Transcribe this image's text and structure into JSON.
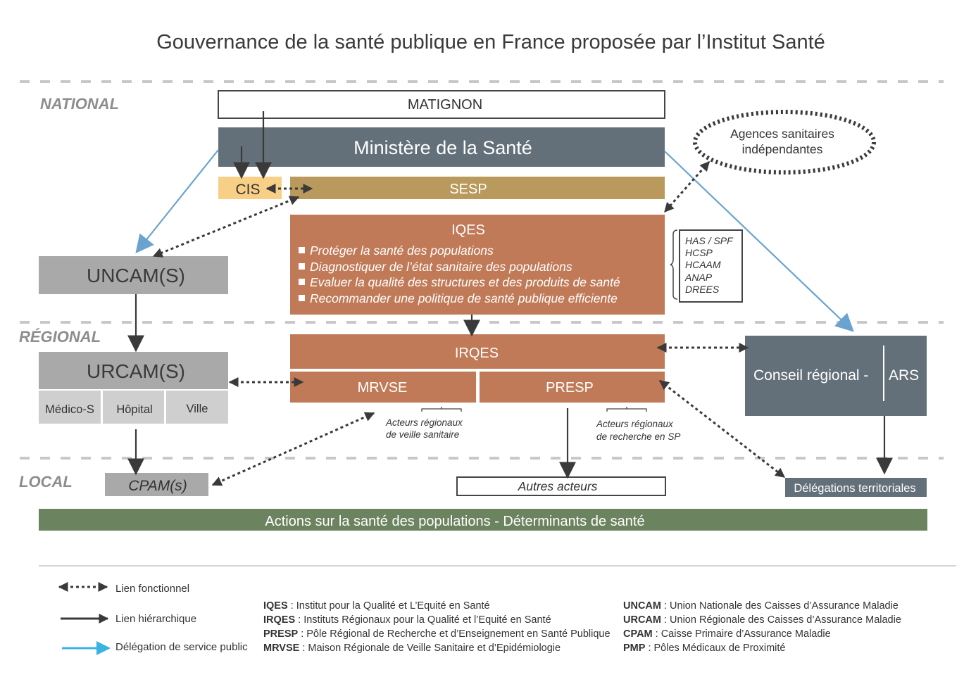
{
  "title": "Gouvernance de la santé publique en France proposée par l’Institut Santé",
  "levels": {
    "national": "NATIONAL",
    "regional": "RÉGIONAL",
    "local": "LOCAL"
  },
  "national": {
    "matignon": "MATIGNON",
    "ministere": "Ministère de la Santé",
    "cis": "CIS",
    "sesp": "SESP",
    "agences": [
      "Agences sanitaires",
      "indépendantes"
    ],
    "iqes": {
      "title": "IQES",
      "bullets": [
        "Protéger la santé des populations",
        "Diagnostiquer de l’état sanitaire des populations",
        "Evaluer la qualité des structures et des produits de santé",
        "Recommander une politique de santé publique efficiente"
      ]
    },
    "agencies_list": [
      "HAS / SPF",
      "HCSP",
      "HCAAM",
      "ANAP",
      "DREES"
    ],
    "uncam": "UNCAM(S)"
  },
  "regional": {
    "urcam": "URCAM(S)",
    "urcam_subs": [
      "Médico-S",
      "Hôpital",
      "Ville"
    ],
    "irqes": "IRQES",
    "mrvse": "MRVSE",
    "presp": "PRESP",
    "acteurs_veille": [
      "Acteurs régionaux",
      "de veille sanitaire"
    ],
    "acteurs_recherche": [
      "Acteurs régionaux",
      "de recherche en SP"
    ],
    "conseil": "Conseil régional -",
    "ars": "ARS"
  },
  "local": {
    "cpam": "CPAM(s)",
    "autres": "Autres acteurs",
    "delegations": "Délégations territoriales"
  },
  "actions_bar": "Actions sur la santé des populations - Déterminants de santé",
  "legend": [
    {
      "label": "Lien fonctionnel",
      "type": "dotted-double-arrow"
    },
    {
      "label": "Lien hiérarchique",
      "type": "solid-arrow"
    },
    {
      "label": "Délégation de service public",
      "type": "blue-arrow"
    }
  ],
  "abbreviations_left": [
    {
      "abbr": "IQES",
      "def": " : Institut pour la Qualité et L’Equité en Santé"
    },
    {
      "abbr": "IRQES",
      "def": " : Instituts Régionaux pour la Qualité et l’Equité en Santé"
    },
    {
      "abbr": "PRESP",
      "def": " : Pôle Régional de Recherche et d’Enseignement en Santé Publique"
    },
    {
      "abbr": "MRVSE",
      "def": " : Maison Régionale de Veille Sanitaire et d’Epidémiologie"
    }
  ],
  "abbreviations_right": [
    {
      "abbr": "UNCAM",
      "def": " : Union Nationale des Caisses d’Assurance Maladie"
    },
    {
      "abbr": "URCAM",
      "def": " : Union Régionale des Caisses d’Assurance Maladie"
    },
    {
      "abbr": "CPAM",
      "def": " : Caisse Primaire d’Assurance Maladie"
    },
    {
      "abbr": "PMP",
      "def": " : Pôles Médicaux de Proximité"
    }
  ],
  "colors": {
    "ministere": "#637079",
    "cis": "#f8cf86",
    "sesp": "#b99a5c",
    "iqes": "#c17a58",
    "assurance": "#a9a9a9",
    "assurance_sub": "#cfcfcf",
    "actions": "#6b835f",
    "delegation_arrow": "#6aa3cf"
  }
}
